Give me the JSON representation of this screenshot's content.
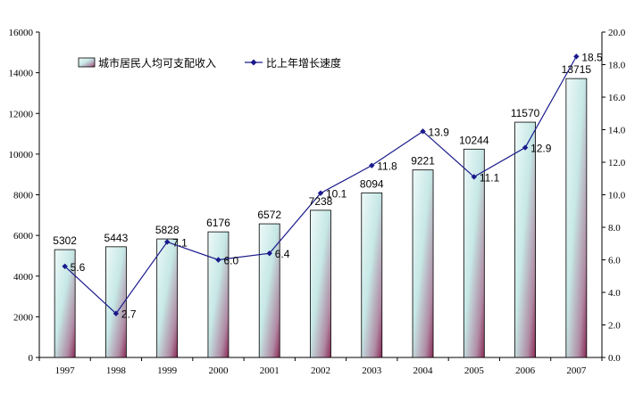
{
  "chart_data": {
    "type": "bar",
    "categories": [
      "1997",
      "1998",
      "1999",
      "2000",
      "2001",
      "2002",
      "2003",
      "2004",
      "2005",
      "2006",
      "2007"
    ],
    "series": [
      {
        "name": "城市居民人均可支配收入",
        "type": "bar",
        "axis": "left",
        "values": [
          5302,
          5443,
          5828,
          6176,
          6572,
          7238,
          8094,
          9221,
          10244,
          11570,
          13715
        ],
        "labels": [
          "5302",
          "5443",
          "5828",
          "6176",
          "6572",
          "7238",
          "8094",
          "9221",
          "10244",
          "11570",
          "13715"
        ]
      },
      {
        "name": "比上年增长速度",
        "type": "line",
        "axis": "right",
        "values": [
          5.6,
          2.7,
          7.1,
          6.0,
          6.4,
          10.1,
          11.8,
          13.9,
          11.1,
          12.9,
          18.5
        ],
        "labels": [
          "5.6",
          "2.7",
          "7.1",
          "6.0",
          "6.4",
          "10.1",
          "11.8",
          "13.9",
          "11.1",
          "12.9",
          "18.5"
        ]
      }
    ],
    "y_left": {
      "min": 0,
      "max": 16000,
      "ticks": [
        "0",
        "2000",
        "4000",
        "6000",
        "8000",
        "10000",
        "12000",
        "14000",
        "16000"
      ]
    },
    "y_right": {
      "min": 0,
      "max": 20,
      "ticks": [
        "0.0",
        "2.0",
        "4.0",
        "6.0",
        "8.0",
        "10.0",
        "12.0",
        "14.0",
        "16.0",
        "18.0",
        "20.0"
      ]
    },
    "grid": false,
    "legend": "top-left",
    "colors": {
      "bar_light": "#e6f6f4",
      "bar_mid": "#bfe4e2",
      "bar_dark": "#8a2a55",
      "line": "#1a1a8c",
      "axis": "#000000"
    }
  }
}
